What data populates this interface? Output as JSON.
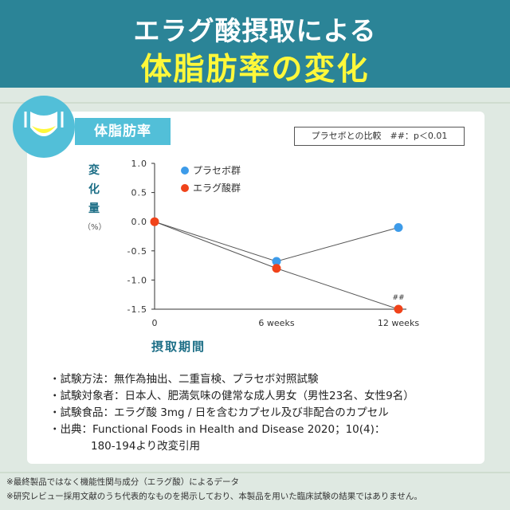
{
  "header": {
    "line1": "エラグ酸摂取による",
    "line2": "体脂肪率の変化"
  },
  "badge": {
    "label": "体脂肪率"
  },
  "note_box": "プラセボとの比較　##：p＜0.01",
  "colors": {
    "header": "#2b8497",
    "accent": "#52bfd8",
    "title_yellow": "#fff83a",
    "placebo": "#3d9be9",
    "ellagic": "#f0431a"
  },
  "chart_data": {
    "type": "line",
    "x": [
      "0",
      "6 weeks",
      "12 weeks"
    ],
    "series": [
      {
        "name": "プラセボ群",
        "values": [
          0.0,
          -0.68,
          -0.1
        ],
        "color": "#3d9be9"
      },
      {
        "name": "エラグ酸群",
        "values": [
          0.0,
          -0.8,
          -1.5
        ],
        "color": "#f0431a"
      }
    ],
    "ylabel_chars": [
      "変",
      "化",
      "量"
    ],
    "yunit": "（%）",
    "xlabel": "摂取期間",
    "ylim": [
      -1.5,
      1.0
    ],
    "yticks": [
      "1.0",
      "0.5",
      "0.0",
      "-0.5",
      "-1.0",
      "-1.5"
    ],
    "annotation": "##",
    "legend_position": "top-left"
  },
  "details": [
    "・試験方法：無作為抽出、二重盲検、プラセボ対照試験",
    "・試験対象者：日本人、肥満気味の健常な成人男女（男性23名、女性9名）",
    "・試験食品：エラグ酸 3mg / 日を含むカプセル及び非配合のカプセル",
    "・出典：Functional Foods in Health and Disease 2020；10(4)："
  ],
  "details_cont": "180-194より改変引用",
  "footnotes": [
    "※最終製品ではなく機能性関与成分（エラグ酸）によるデータ",
    "※研究レビュー採用文献のうち代表的なものを掲示しており、本製品を用いた臨床試験の結果ではありません。"
  ]
}
